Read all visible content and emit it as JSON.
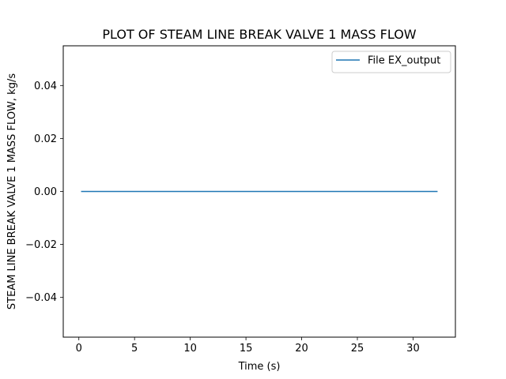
{
  "chart_data": {
    "type": "line",
    "title": "PLOT OF STEAM LINE BREAK VALVE 1 MASS FLOW",
    "xlabel": "Time (s)",
    "ylabel": "STEAM LINE BREAK VALVE 1 MASS FLOW, kg/s",
    "xlim": [
      -1.4,
      33.8
    ],
    "ylim": [
      -0.055,
      0.055
    ],
    "xticks": [
      0,
      5,
      10,
      15,
      20,
      25,
      30
    ],
    "yticks": [
      -0.04,
      -0.02,
      0.0,
      0.02,
      0.04
    ],
    "xtick_labels": [
      "0",
      "5",
      "10",
      "15",
      "20",
      "25",
      "30"
    ],
    "ytick_labels": [
      "−0.04",
      "−0.02",
      "0.00",
      "0.02",
      "0.04"
    ],
    "grid": false,
    "legend_position": "top-right",
    "series": [
      {
        "name": "File EX_output",
        "color": "#1f77b4",
        "x": [
          0.2,
          32.2
        ],
        "y": [
          0.0,
          0.0
        ]
      }
    ]
  }
}
